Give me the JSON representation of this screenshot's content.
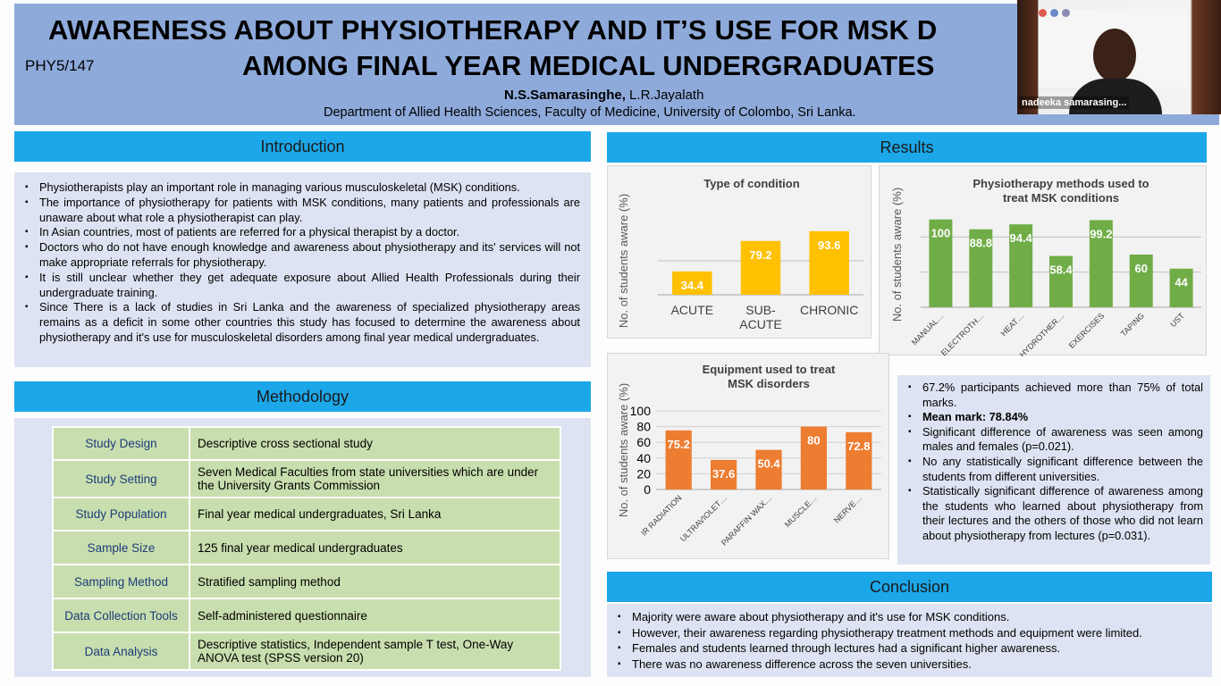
{
  "poster": {
    "code": "PHY5/147",
    "title_line1": "AWARENESS ABOUT PHYSIOTHERAPY AND IT’S USE FOR MSK D",
    "title_line2": "AMONG FINAL YEAR MEDICAL UNDERGRADUATES",
    "author_main": "N.S.Samarasinghe,",
    "author_co": " L.R.Jayalath",
    "department": "Department of Allied Health Sciences, Faculty of Medicine, University of Colombo, Sri Lanka."
  },
  "video": {
    "participant_name": "nadeeka samarasing..."
  },
  "sections": {
    "introduction": "Introduction",
    "methodology": "Methodology",
    "results": "Results",
    "conclusion": "Conclusion"
  },
  "introduction": [
    "Physiotherapists play an important role in managing various musculoskeletal (MSK) conditions.",
    "The importance of physiotherapy for patients with MSK conditions, many patients and professionals are unaware about what role a physiotherapist can play.",
    "In Asian countries, most of patients are referred for a physical therapist by a  doctor.",
    "Doctors who do not have enough knowledge and awareness about physiotherapy and its' services will not make appropriate referrals for physiotherapy.",
    "It is still unclear whether they get adequate exposure about Allied Health Professionals during their undergraduate training.",
    "Since There is a lack of studies in Sri Lanka and the awareness of specialized physiotherapy areas remains as a deficit in some other countries this study has focused to determine the awareness about physiotherapy and it's use for musculoskeletal disorders among final year medical undergraduates."
  ],
  "methodology": [
    {
      "key": "Study Design",
      "value": "Descriptive cross sectional study"
    },
    {
      "key": "Study Setting",
      "value": "Seven Medical Faculties from state universities which are under the University Grants Commission"
    },
    {
      "key": "Study Population",
      "value": "Final year medical undergraduates, Sri Lanka"
    },
    {
      "key": "Sample Size",
      "value": "125 final year medical undergraduates"
    },
    {
      "key": "Sampling Method",
      "value": "Stratified sampling method"
    },
    {
      "key": "Data Collection Tools",
      "value": "Self-administered questionnaire"
    },
    {
      "key": "Data Analysis",
      "value": "Descriptive statistics, Independent sample T test, One-Way ANOVA test (SPSS version 20)"
    }
  ],
  "results_text": [
    "67.2% participants achieved more than 75% of total marks.",
    "Mean mark: 78.84%",
    "Significant difference of awareness was seen among males and females (p=0.021).",
    "No any statistically significant difference between the students from different universities.",
    "Statistically significant difference of awareness among the students who learned about physiotherapy from their lectures and the others of those who did not learn about physiotherapy from lectures (p=0.031)."
  ],
  "conclusion": [
    "Majority were aware about physiotherapy and it's use for MSK conditions.",
    "However, their awareness regarding physiotherapy treatment methods and equipment were limited.",
    "Females and students learned through lectures had a significant higher awareness.",
    "There was no awareness difference across the seven universities."
  ],
  "colors": {
    "header_bg": "#8eaadb",
    "section_bar": "#1ca7e9",
    "panel_bg": "#dde3f2",
    "table_cell": "#c9deae",
    "yellow_bar": "#ffc000",
    "green_bar": "#70ad47",
    "orange_bar": "#ed7d31"
  },
  "chart_data": [
    {
      "type": "bar",
      "title": "Type of condition",
      "ylabel": "No. of students aware (%)",
      "categories": [
        "ACUTE",
        "SUB-ACUTE",
        "CHRONIC"
      ],
      "values": [
        34.4,
        79.2,
        93.6
      ],
      "ylim": [
        0,
        100
      ],
      "color": "#ffc000"
    },
    {
      "type": "bar",
      "title": "Physiotherapy methods used to treat MSK conditions",
      "ylabel": "No. of students aware (%)",
      "categories": [
        "MANUAL…",
        "ELECTROTH…",
        "HEAT…",
        "HYDROTHER…",
        "EXERCISES",
        "TAPING",
        "UST"
      ],
      "values": [
        100,
        88.8,
        94.4,
        58.4,
        99.2,
        60,
        44
      ],
      "ylim": [
        0,
        120
      ],
      "color": "#70ad47"
    },
    {
      "type": "bar",
      "title": "Equipment used to treat MSK disorders",
      "ylabel": "No. of students aware (%)",
      "categories": [
        "IR RADIATION",
        "ULTRAVIOLET…",
        "PARAFFIN WAX…",
        "MUSCLE…",
        "NERVE…"
      ],
      "values": [
        75.2,
        37.6,
        50.4,
        80,
        72.8
      ],
      "ylim": [
        0,
        100
      ],
      "yticks": [
        0,
        20,
        40,
        60,
        80,
        100
      ],
      "color": "#ed7d31"
    }
  ]
}
